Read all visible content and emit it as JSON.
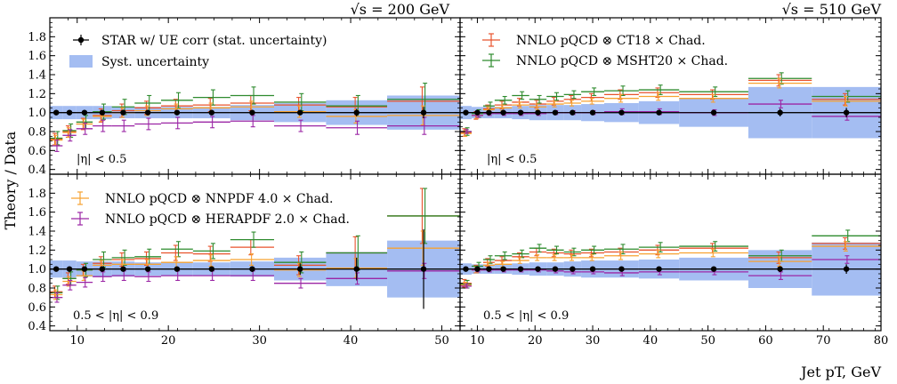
{
  "figure": {
    "ylabel": "Theory / Data",
    "xlabel": "Jet pT, GeV",
    "energy_left": "√s = 200 GeV",
    "energy_right": "√s = 510 GeV"
  },
  "legend": {
    "star": "STAR w/ UE corr (stat. uncertainty)",
    "syst": "Syst. uncertainty",
    "ct18": "NNLO pQCD ⊗ CT18 × Chad.",
    "msht": "NNLO pQCD ⊗ MSHT20 × Chad.",
    "nnpdf": "NNLO pQCD ⊗ NNPDF 4.0 × Chad.",
    "hera": "NNLO pQCD ⊗ HERAPDF 2.0 × Chad."
  },
  "colors": {
    "star": "#000000",
    "syst": "#a4bdf2",
    "ct18": "#e8532d",
    "msht": "#2e8b2e",
    "nnpdf": "#f7a232",
    "hera": "#9b26a5"
  },
  "chart_data": [
    {
      "type": "scatter",
      "panel": "top-left",
      "region": "|η| < 0.5",
      "xlim": [
        7,
        52
      ],
      "ylim": [
        0.35,
        2.0
      ],
      "xticks": [
        10,
        20,
        30,
        40,
        50
      ],
      "yticks": [
        0.4,
        0.6,
        0.8,
        1.0,
        1.2,
        1.4,
        1.6,
        1.8
      ],
      "bins": [
        [
          7.0,
          8.4
        ],
        [
          8.4,
          9.9
        ],
        [
          9.9,
          11.7
        ],
        [
          11.7,
          13.8
        ],
        [
          13.8,
          16.3
        ],
        [
          16.3,
          19.2
        ],
        [
          19.2,
          22.7
        ],
        [
          22.7,
          26.8
        ],
        [
          26.8,
          31.6
        ],
        [
          31.6,
          37.3
        ],
        [
          37.3,
          44.0
        ],
        [
          44.0,
          52.0
        ]
      ],
      "data": {
        "y": [
          1,
          1,
          1,
          1,
          1,
          1,
          1,
          1,
          1,
          1,
          1,
          1
        ],
        "err": [
          0.01,
          0.01,
          0.01,
          0.01,
          0.01,
          0.01,
          0.01,
          0.01,
          0.01,
          0.02,
          0.04,
          0.06
        ],
        "syst_lo": [
          0.93,
          0.93,
          0.93,
          0.93,
          0.94,
          0.94,
          0.94,
          0.94,
          0.92,
          0.9,
          0.87,
          0.82
        ],
        "syst_hi": [
          1.07,
          1.07,
          1.07,
          1.07,
          1.06,
          1.06,
          1.06,
          1.06,
          1.08,
          1.1,
          1.13,
          1.18
        ]
      },
      "series": [
        {
          "name": "CT18",
          "color": "ct18",
          "y": [
            0.72,
            0.8,
            0.88,
            0.97,
            1.02,
            1.05,
            1.07,
            1.08,
            1.1,
            1.08,
            1.06,
            1.12
          ],
          "err": [
            0.06,
            0.06,
            0.06,
            0.07,
            0.07,
            0.07,
            0.07,
            0.07,
            0.08,
            0.08,
            0.1,
            0.15
          ]
        },
        {
          "name": "MSHT20",
          "color": "msht",
          "y": [
            0.73,
            0.81,
            0.9,
            1.01,
            1.06,
            1.1,
            1.13,
            1.16,
            1.18,
            1.11,
            1.07,
            1.14
          ],
          "err": [
            0.07,
            0.07,
            0.07,
            0.08,
            0.08,
            0.08,
            0.08,
            0.08,
            0.09,
            0.09,
            0.11,
            0.17
          ]
        },
        {
          "name": "NNPDF 4.0",
          "color": "nnpdf",
          "y": [
            0.71,
            0.79,
            0.88,
            0.96,
            1.0,
            1.02,
            1.04,
            1.05,
            1.06,
            1.01,
            0.96,
            0.97
          ],
          "err": [
            0.05,
            0.05,
            0.05,
            0.05,
            0.05,
            0.05,
            0.05,
            0.05,
            0.06,
            0.06,
            0.07,
            0.1
          ]
        },
        {
          "name": "HERAPDF 2.0",
          "color": "hera",
          "y": [
            0.65,
            0.76,
            0.83,
            0.86,
            0.86,
            0.88,
            0.89,
            0.9,
            0.91,
            0.86,
            0.84,
            0.86
          ],
          "err": [
            0.06,
            0.06,
            0.06,
            0.06,
            0.06,
            0.06,
            0.06,
            0.06,
            0.06,
            0.06,
            0.07,
            0.09
          ]
        }
      ]
    },
    {
      "type": "scatter",
      "panel": "top-right",
      "region": "|η| < 0.5",
      "xlim": [
        7,
        80
      ],
      "ylim": [
        0.35,
        2.0
      ],
      "xticks": [
        10,
        20,
        30,
        40,
        50,
        60,
        70,
        80
      ],
      "yticks": [
        0.4,
        0.6,
        0.8,
        1.0,
        1.2,
        1.4,
        1.6,
        1.8
      ],
      "bins": [
        [
          7.0,
          9.0
        ],
        [
          9.0,
          11.0
        ],
        [
          11.0,
          13.0
        ],
        [
          13.0,
          16.0
        ],
        [
          16.0,
          19.0
        ],
        [
          19.0,
          22.0
        ],
        [
          22.0,
          25.0
        ],
        [
          25.0,
          28.0
        ],
        [
          28.0,
          32.0
        ],
        [
          32.0,
          38.0
        ],
        [
          38.0,
          45.0
        ],
        [
          45.0,
          57.0
        ],
        [
          57.0,
          68.0
        ],
        [
          68.0,
          80.0
        ]
      ],
      "data": {
        "y": [
          1,
          1,
          1,
          1,
          1,
          1,
          1,
          1,
          1,
          1,
          1,
          1,
          1,
          1
        ],
        "err": [
          0.01,
          0.01,
          0.01,
          0.01,
          0.01,
          0.01,
          0.01,
          0.01,
          0.01,
          0.01,
          0.01,
          0.02,
          0.04,
          0.05
        ],
        "syst_lo": [
          0.93,
          0.94,
          0.94,
          0.94,
          0.93,
          0.92,
          0.92,
          0.92,
          0.91,
          0.9,
          0.88,
          0.85,
          0.73,
          0.73
        ],
        "syst_hi": [
          1.07,
          1.06,
          1.06,
          1.06,
          1.07,
          1.08,
          1.08,
          1.08,
          1.09,
          1.1,
          1.12,
          1.15,
          1.27,
          1.27
        ]
      },
      "series": [
        {
          "name": "CT18",
          "color": "ct18",
          "y": [
            0.79,
            0.97,
            1.04,
            1.08,
            1.11,
            1.09,
            1.12,
            1.14,
            1.16,
            1.19,
            1.21,
            1.19,
            1.34,
            1.14
          ],
          "err": [
            0.04,
            0.04,
            0.04,
            0.04,
            0.04,
            0.04,
            0.04,
            0.04,
            0.04,
            0.05,
            0.05,
            0.05,
            0.06,
            0.06
          ]
        },
        {
          "name": "MSHT20",
          "color": "msht",
          "y": [
            0.8,
            0.99,
            1.07,
            1.13,
            1.18,
            1.14,
            1.17,
            1.19,
            1.22,
            1.23,
            1.24,
            1.22,
            1.36,
            1.17
          ],
          "err": [
            0.04,
            0.04,
            0.04,
            0.04,
            0.04,
            0.04,
            0.04,
            0.04,
            0.04,
            0.05,
            0.05,
            0.05,
            0.06,
            0.06
          ]
        },
        {
          "name": "NNPDF 4.0",
          "color": "nnpdf",
          "y": [
            0.78,
            0.97,
            1.03,
            1.05,
            1.08,
            1.06,
            1.09,
            1.1,
            1.12,
            1.15,
            1.17,
            1.15,
            1.31,
            1.12
          ],
          "err": [
            0.03,
            0.03,
            0.03,
            0.03,
            0.03,
            0.03,
            0.03,
            0.03,
            0.03,
            0.04,
            0.04,
            0.04,
            0.05,
            0.05
          ]
        },
        {
          "name": "HERAPDF 2.0",
          "color": "hera",
          "y": [
            0.8,
            0.97,
            0.99,
            0.99,
            0.99,
            0.99,
            1.0,
            1.0,
            1.0,
            1.01,
            1.01,
            1.0,
            1.09,
            0.96
          ],
          "err": [
            0.02,
            0.02,
            0.02,
            0.02,
            0.02,
            0.02,
            0.02,
            0.02,
            0.02,
            0.03,
            0.03,
            0.03,
            0.04,
            0.04
          ]
        }
      ]
    },
    {
      "type": "scatter",
      "panel": "bottom-left",
      "region": "0.5 < |η| < 0.9",
      "xlim": [
        7,
        52
      ],
      "ylim": [
        0.35,
        2.0
      ],
      "xticks": [
        10,
        20,
        30,
        40,
        50
      ],
      "yticks": [
        0.4,
        0.6,
        0.8,
        1.0,
        1.2,
        1.4,
        1.6,
        1.8
      ],
      "bins": [
        [
          7.0,
          8.4
        ],
        [
          8.4,
          9.9
        ],
        [
          9.9,
          11.7
        ],
        [
          11.7,
          13.8
        ],
        [
          13.8,
          16.3
        ],
        [
          16.3,
          19.2
        ],
        [
          19.2,
          22.7
        ],
        [
          22.7,
          26.8
        ],
        [
          26.8,
          31.6
        ],
        [
          31.6,
          37.3
        ],
        [
          37.3,
          44.0
        ],
        [
          44.0,
          52.0
        ]
      ],
      "data": {
        "y": [
          1,
          1,
          1,
          1,
          1,
          1,
          1,
          1,
          1,
          1,
          1,
          1
        ],
        "err": [
          0.01,
          0.01,
          0.01,
          0.01,
          0.01,
          0.01,
          0.01,
          0.02,
          0.03,
          0.06,
          0.12,
          0.42
        ],
        "syst_lo": [
          0.91,
          0.91,
          0.92,
          0.92,
          0.92,
          0.93,
          0.93,
          0.93,
          0.92,
          0.88,
          0.82,
          0.7
        ],
        "syst_hi": [
          1.09,
          1.09,
          1.08,
          1.08,
          1.08,
          1.07,
          1.07,
          1.07,
          1.08,
          1.12,
          1.18,
          1.3
        ]
      },
      "series": [
        {
          "name": "CT18",
          "color": "ct18",
          "y": [
            0.76,
            0.9,
            0.99,
            1.06,
            1.1,
            1.11,
            1.17,
            1.16,
            1.23,
            1.04,
            1.17,
            1.56
          ],
          "err": [
            0.06,
            0.06,
            0.06,
            0.07,
            0.07,
            0.07,
            0.08,
            0.08,
            0.08,
            0.1,
            0.17,
            0.29
          ]
        },
        {
          "name": "MSHT20",
          "color": "msht",
          "y": [
            0.75,
            0.9,
            0.99,
            1.1,
            1.12,
            1.13,
            1.21,
            1.19,
            1.31,
            1.07,
            1.17,
            1.56
          ],
          "err": [
            0.07,
            0.07,
            0.07,
            0.08,
            0.08,
            0.08,
            0.08,
            0.08,
            0.08,
            0.11,
            0.18,
            0.29
          ]
        },
        {
          "name": "NNPDF 4.0",
          "color": "nnpdf",
          "y": [
            0.73,
            0.87,
            0.93,
            1.04,
            1.05,
            1.05,
            1.07,
            1.09,
            1.1,
            0.99,
            1.01,
            1.22
          ],
          "err": [
            0.05,
            0.05,
            0.05,
            0.05,
            0.05,
            0.05,
            0.06,
            0.06,
            0.06,
            0.07,
            0.1,
            0.18
          ]
        },
        {
          "name": "HERAPDF 2.0",
          "color": "hera",
          "y": [
            0.7,
            0.83,
            0.86,
            0.92,
            0.93,
            0.92,
            0.93,
            0.93,
            0.93,
            0.85,
            0.9,
            0.98
          ],
          "err": [
            0.05,
            0.05,
            0.05,
            0.05,
            0.05,
            0.05,
            0.05,
            0.05,
            0.05,
            0.05,
            0.06,
            0.08
          ]
        }
      ]
    },
    {
      "type": "scatter",
      "panel": "bottom-right",
      "region": "0.5 < |η| < 0.9",
      "xlim": [
        7,
        80
      ],
      "ylim": [
        0.35,
        2.0
      ],
      "xticks": [
        10,
        20,
        30,
        40,
        50,
        60,
        70,
        80
      ],
      "yticks": [
        0.4,
        0.6,
        0.8,
        1.0,
        1.2,
        1.4,
        1.6,
        1.8
      ],
      "bins": [
        [
          7.0,
          9.0
        ],
        [
          9.0,
          11.0
        ],
        [
          11.0,
          13.0
        ],
        [
          13.0,
          16.0
        ],
        [
          16.0,
          19.0
        ],
        [
          19.0,
          22.0
        ],
        [
          22.0,
          25.0
        ],
        [
          25.0,
          28.0
        ],
        [
          28.0,
          32.0
        ],
        [
          32.0,
          38.0
        ],
        [
          38.0,
          45.0
        ],
        [
          45.0,
          57.0
        ],
        [
          57.0,
          68.0
        ],
        [
          68.0,
          80.0
        ]
      ],
      "data": {
        "y": [
          1,
          1,
          1,
          1,
          1,
          1,
          1,
          1,
          1,
          1,
          1,
          1,
          1,
          1
        ],
        "err": [
          0.01,
          0.01,
          0.01,
          0.01,
          0.01,
          0.01,
          0.01,
          0.01,
          0.01,
          0.01,
          0.01,
          0.02,
          0.03,
          0.05
        ],
        "syst_lo": [
          0.94,
          0.95,
          0.95,
          0.95,
          0.94,
          0.93,
          0.93,
          0.92,
          0.91,
          0.91,
          0.9,
          0.88,
          0.8,
          0.72
        ],
        "syst_hi": [
          1.06,
          1.05,
          1.05,
          1.05,
          1.06,
          1.07,
          1.07,
          1.08,
          1.09,
          1.09,
          1.1,
          1.12,
          1.2,
          1.28
        ]
      },
      "series": [
        {
          "name": "CT18",
          "color": "ct18",
          "y": [
            0.85,
            1.0,
            1.07,
            1.09,
            1.13,
            1.18,
            1.17,
            1.16,
            1.17,
            1.18,
            1.2,
            1.22,
            1.12,
            1.27
          ],
          "err": [
            0.04,
            0.04,
            0.04,
            0.04,
            0.04,
            0.04,
            0.04,
            0.04,
            0.04,
            0.04,
            0.05,
            0.05,
            0.06,
            0.06
          ]
        },
        {
          "name": "MSHT20",
          "color": "msht",
          "y": [
            0.84,
            1.03,
            1.1,
            1.14,
            1.16,
            1.22,
            1.2,
            1.18,
            1.2,
            1.21,
            1.23,
            1.24,
            1.14,
            1.35
          ],
          "err": [
            0.04,
            0.04,
            0.04,
            0.04,
            0.04,
            0.04,
            0.04,
            0.04,
            0.04,
            0.05,
            0.05,
            0.05,
            0.06,
            0.06
          ]
        },
        {
          "name": "NNPDF 4.0",
          "color": "nnpdf",
          "y": [
            0.83,
            0.99,
            1.04,
            1.05,
            1.09,
            1.12,
            1.12,
            1.12,
            1.12,
            1.14,
            1.16,
            1.17,
            1.08,
            1.24
          ],
          "err": [
            0.03,
            0.03,
            0.03,
            0.03,
            0.03,
            0.03,
            0.03,
            0.03,
            0.03,
            0.04,
            0.04,
            0.04,
            0.05,
            0.05
          ]
        },
        {
          "name": "HERAPDF 2.0",
          "color": "hera",
          "y": [
            0.82,
            0.99,
            0.99,
            0.99,
            0.99,
            0.99,
            0.98,
            0.97,
            0.97,
            0.96,
            0.97,
            0.97,
            0.93,
            1.1
          ],
          "err": [
            0.02,
            0.02,
            0.02,
            0.02,
            0.02,
            0.02,
            0.02,
            0.02,
            0.02,
            0.03,
            0.03,
            0.03,
            0.04,
            0.04
          ]
        }
      ]
    }
  ]
}
